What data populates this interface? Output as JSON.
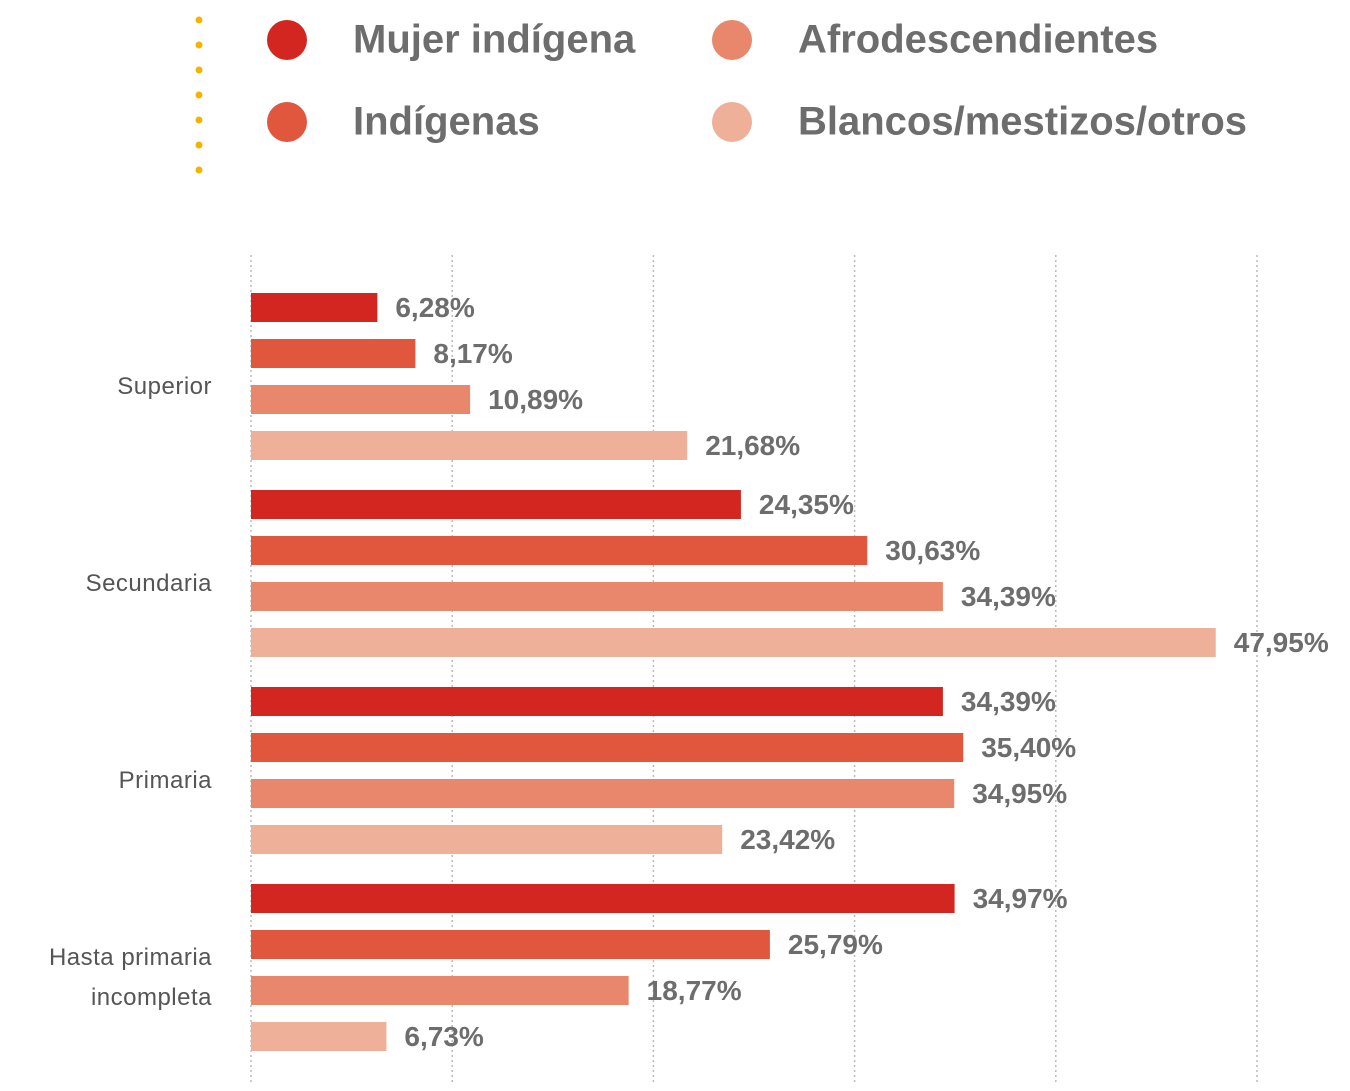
{
  "chart_data": {
    "type": "bar",
    "orientation": "horizontal",
    "categories": [
      "Superior",
      "Secundaria",
      "Primaria",
      "Hasta primaria incompleta"
    ],
    "series": [
      {
        "name": "Mujer indígena",
        "color": "#d42620",
        "values": [
          6.28,
          24.35,
          34.39,
          34.97
        ],
        "value_labels": [
          "6,28%",
          "24,35%",
          "34,39%",
          "34,97%"
        ]
      },
      {
        "name": "Indígenas",
        "color": "#e0573d",
        "values": [
          8.17,
          30.63,
          35.4,
          25.79
        ],
        "value_labels": [
          "8,17%",
          "30,63%",
          "35,40%",
          "25,79%"
        ]
      },
      {
        "name": "Afrodescendientes",
        "color": "#e8876b",
        "values": [
          10.89,
          34.39,
          34.95,
          18.77
        ],
        "value_labels": [
          "10,89%",
          "34,39%",
          "34,95%",
          "18,77%"
        ]
      },
      {
        "name": "Blancos/mestizos/otros",
        "color": "#efb09a",
        "values": [
          21.68,
          47.95,
          23.42,
          6.73
        ],
        "value_labels": [
          "21,68%",
          "47,95%",
          "23,42%",
          "6,73%"
        ]
      }
    ],
    "xlim": [
      0,
      50
    ],
    "xticks": [
      0,
      10,
      20,
      30,
      40,
      50
    ],
    "grid": true,
    "legend": "top"
  }
}
